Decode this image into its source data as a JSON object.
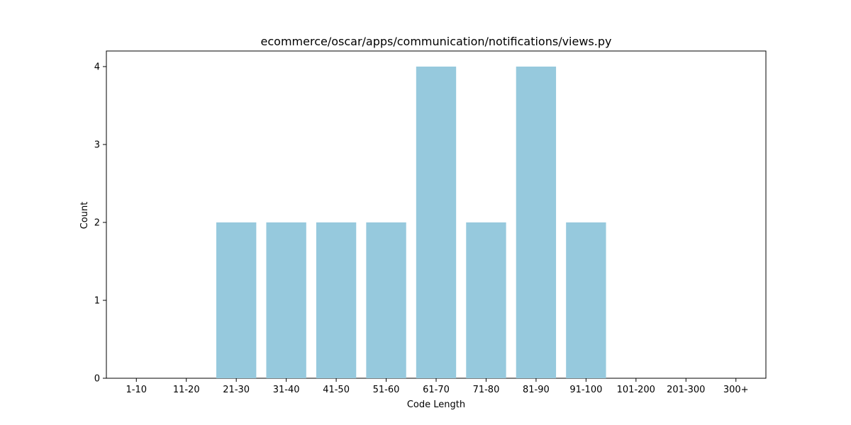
{
  "chart_data": {
    "type": "bar",
    "title": "ecommerce/oscar/apps/communication/notifications/views.py",
    "xlabel": "Code Length",
    "ylabel": "Count",
    "categories": [
      "1-10",
      "11-20",
      "21-30",
      "31-40",
      "41-50",
      "51-60",
      "61-70",
      "71-80",
      "81-90",
      "91-100",
      "101-200",
      "201-300",
      "300+"
    ],
    "values": [
      0,
      0,
      2,
      2,
      2,
      2,
      4,
      2,
      4,
      2,
      0,
      0,
      0
    ],
    "yticks": [
      0,
      1,
      2,
      3,
      4
    ],
    "ylim": [
      0,
      4.2
    ],
    "bar_color": "#96c9dd",
    "grid": false,
    "legend": "none"
  }
}
